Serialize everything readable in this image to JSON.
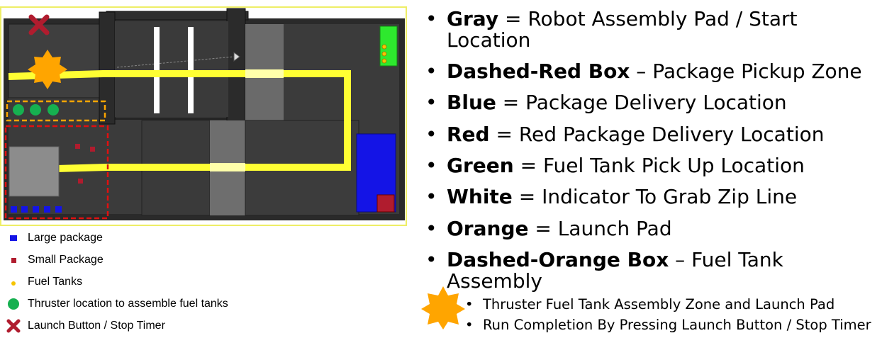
{
  "legend_left": [
    {
      "icon": "large-package-square-icon",
      "color": "#1414e6",
      "label": "Large package"
    },
    {
      "icon": "small-package-square-icon",
      "color": "#b01c2e",
      "label": "Small Package"
    },
    {
      "icon": "fuel-tank-dot-icon",
      "color": "#f5c400",
      "label": "Fuel Tanks"
    },
    {
      "icon": "thruster-circle-icon",
      "color": "#16b050",
      "label": "Thruster location to assemble fuel tanks"
    },
    {
      "icon": "x-mark-icon",
      "color": "#b01c2e",
      "label": "Launch Button / Stop Timer"
    }
  ],
  "legend_right": [
    {
      "bold": "Gray",
      "sep": " = ",
      "rest": "Robot Assembly Pad / Start Location"
    },
    {
      "bold": "Dashed-Red Box",
      "sep": " – ",
      "rest": "Package Pickup Zone"
    },
    {
      "bold": "Blue",
      "sep": " = ",
      "rest": "Package Delivery Location"
    },
    {
      "bold": "Red",
      "sep": " = ",
      "rest": "Red Package Delivery Location"
    },
    {
      "bold": "Green",
      "sep": " = ",
      "rest": "Fuel Tank Pick Up Location"
    },
    {
      "bold": "White",
      "sep": " = ",
      "rest": "Indicator To Grab Zip Line"
    },
    {
      "bold": "Orange",
      "sep": " = ",
      "rest": "Launch Pad"
    },
    {
      "bold": "Dashed-Orange Box",
      "sep": " – ",
      "rest": "Fuel Tank Assembly"
    }
  ],
  "bullet_char": "•",
  "notes": [
    "Thruster Fuel Tank Assembly Zone and Launch Pad",
    "Run Completion By Pressing Launch Button / Stop Timer"
  ],
  "colors": {
    "board_dark": "#3a3a3a",
    "wall": "#262626",
    "track_yellow": "#ffff33",
    "start_gray": "#8c8c8c",
    "delivery_blue": "#1414e6",
    "delivery_red": "#b01c2e",
    "fuel_green": "#2ee82e",
    "launch_orange": "#ffa500",
    "frame_yellow": "#eeee66"
  }
}
